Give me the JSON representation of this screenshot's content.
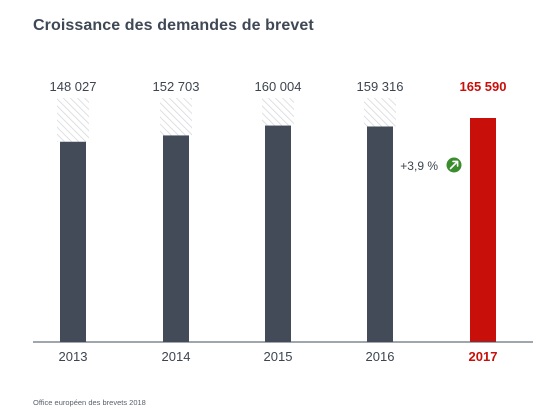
{
  "title": "Croissance des demandes de brevet",
  "source": "Office européen des brevets 2018",
  "colors": {
    "bar": "#434b58",
    "highlight": "#c80f0a",
    "hatch_stroke": "#d6d9dd",
    "axis": "#434b58",
    "text": "#3d4550",
    "badge": "#3a8c2d"
  },
  "annotation": {
    "text": "+3,9 %",
    "icon": "arrow-up-right-icon"
  },
  "chart_data": {
    "type": "bar",
    "categories": [
      "2013",
      "2014",
      "2015",
      "2016",
      "2017"
    ],
    "values": [
      148027,
      152703,
      160004,
      159316,
      165590
    ],
    "value_labels": [
      "148 027",
      "152 703",
      "160 004",
      "159 316",
      "165 590"
    ],
    "highlight_index": 4,
    "ylim": [
      0,
      165590
    ],
    "title": "Croissance des demandes de brevet",
    "xlabel": "",
    "ylabel": ""
  }
}
